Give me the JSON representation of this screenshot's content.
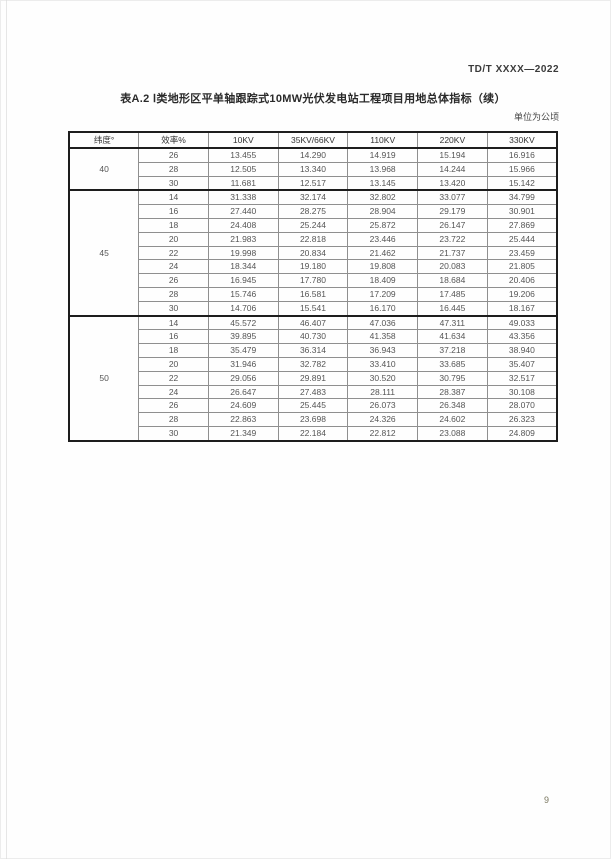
{
  "header": {
    "doc_ref": "TD/T XXXX—2022"
  },
  "table": {
    "title": "表A.2  Ⅰ类地形区平单轴跟踪式10MW光伏发电站工程项目用地总体指标（续）",
    "unit_note": "单位为公顷",
    "columns": [
      "纬度°",
      "效率%",
      "10KV",
      "35KV/66KV",
      "110KV",
      "220KV",
      "330KV"
    ],
    "groups": [
      {
        "latitude": "40",
        "rows": [
          {
            "efficiency": "26",
            "values": [
              "13.455",
              "14.290",
              "14.919",
              "15.194",
              "16.916"
            ]
          },
          {
            "efficiency": "28",
            "values": [
              "12.505",
              "13.340",
              "13.968",
              "14.244",
              "15.966"
            ]
          },
          {
            "efficiency": "30",
            "values": [
              "11.681",
              "12.517",
              "13.145",
              "13.420",
              "15.142"
            ]
          }
        ]
      },
      {
        "latitude": "45",
        "rows": [
          {
            "efficiency": "14",
            "values": [
              "31.338",
              "32.174",
              "32.802",
              "33.077",
              "34.799"
            ]
          },
          {
            "efficiency": "16",
            "values": [
              "27.440",
              "28.275",
              "28.904",
              "29.179",
              "30.901"
            ]
          },
          {
            "efficiency": "18",
            "values": [
              "24.408",
              "25.244",
              "25.872",
              "26.147",
              "27.869"
            ]
          },
          {
            "efficiency": "20",
            "values": [
              "21.983",
              "22.818",
              "23.446",
              "23.722",
              "25.444"
            ]
          },
          {
            "efficiency": "22",
            "values": [
              "19.998",
              "20.834",
              "21.462",
              "21.737",
              "23.459"
            ]
          },
          {
            "efficiency": "24",
            "values": [
              "18.344",
              "19.180",
              "19.808",
              "20.083",
              "21.805"
            ]
          },
          {
            "efficiency": "26",
            "values": [
              "16.945",
              "17.780",
              "18.409",
              "18.684",
              "20.406"
            ]
          },
          {
            "efficiency": "28",
            "values": [
              "15.746",
              "16.581",
              "17.209",
              "17.485",
              "19.206"
            ]
          },
          {
            "efficiency": "30",
            "values": [
              "14.706",
              "15.541",
              "16.170",
              "16.445",
              "18.167"
            ]
          }
        ]
      },
      {
        "latitude": "50",
        "rows": [
          {
            "efficiency": "14",
            "values": [
              "45.572",
              "46.407",
              "47.036",
              "47.311",
              "49.033"
            ]
          },
          {
            "efficiency": "16",
            "values": [
              "39.895",
              "40.730",
              "41.358",
              "41.634",
              "43.356"
            ]
          },
          {
            "efficiency": "18",
            "values": [
              "35.479",
              "36.314",
              "36.943",
              "37.218",
              "38.940"
            ]
          },
          {
            "efficiency": "20",
            "values": [
              "31.946",
              "32.782",
              "33.410",
              "33.685",
              "35.407"
            ]
          },
          {
            "efficiency": "22",
            "values": [
              "29.056",
              "29.891",
              "30.520",
              "30.795",
              "32.517"
            ]
          },
          {
            "efficiency": "24",
            "values": [
              "26.647",
              "27.483",
              "28.111",
              "28.387",
              "30.108"
            ]
          },
          {
            "efficiency": "26",
            "values": [
              "24.609",
              "25.445",
              "26.073",
              "26.348",
              "28.070"
            ]
          },
          {
            "efficiency": "28",
            "values": [
              "22.863",
              "23.698",
              "24.326",
              "24.602",
              "26.323"
            ]
          },
          {
            "efficiency": "30",
            "values": [
              "21.349",
              "22.184",
              "22.812",
              "23.088",
              "24.809"
            ]
          }
        ]
      }
    ]
  },
  "footer": {
    "page_number": "9"
  }
}
